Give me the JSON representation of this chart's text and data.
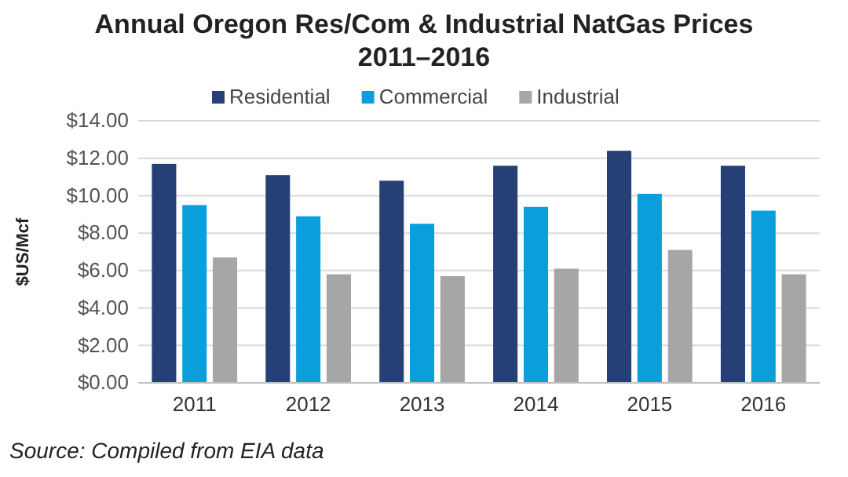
{
  "chart_data": {
    "type": "bar",
    "title": "Annual Oregon Res/Com & Industrial NatGas Prices",
    "subtitle": "2011–2016",
    "ylabel": "$US/Mcf",
    "categories": [
      "2011",
      "2012",
      "2013",
      "2014",
      "2015",
      "2016"
    ],
    "series": [
      {
        "name": "Residential",
        "color": "#263f75",
        "values": [
          11.7,
          11.1,
          10.8,
          11.6,
          12.4,
          11.6
        ]
      },
      {
        "name": "Commercial",
        "color": "#0a9fdc",
        "values": [
          9.5,
          8.9,
          8.5,
          9.4,
          10.1,
          9.2
        ]
      },
      {
        "name": "Industrial",
        "color": "#a6a6a6",
        "values": [
          6.7,
          5.8,
          5.7,
          6.1,
          7.1,
          5.8
        ]
      }
    ],
    "ylim": [
      0,
      14
    ],
    "yticks": [
      {
        "value": 0,
        "label": "$0.00"
      },
      {
        "value": 2,
        "label": "$2.00"
      },
      {
        "value": 4,
        "label": "$4.00"
      },
      {
        "value": 6,
        "label": "$6.00"
      },
      {
        "value": 8,
        "label": "$8.00"
      },
      {
        "value": 10,
        "label": "$10.00"
      },
      {
        "value": 12,
        "label": "$12.00"
      },
      {
        "value": 14,
        "label": "$14.00"
      }
    ],
    "grid": "y",
    "legend": "top",
    "annotations": [
      "Source: Compiled from EIA data"
    ]
  }
}
